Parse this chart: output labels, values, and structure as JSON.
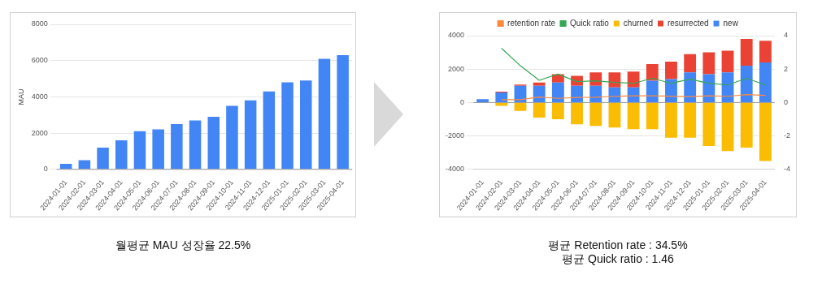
{
  "chart_data": [
    {
      "type": "bar",
      "ylabel": "MAU",
      "categories": [
        "2024-01-01",
        "2024-02-01",
        "2024-03-01",
        "2024-04-01",
        "2024-05-01",
        "2024-06-01",
        "2024-07-01",
        "2024-08-01",
        "2024-09-01",
        "2024-10-01",
        "2024-11-01",
        "2024-12-01",
        "2025-01-01",
        "2025-02-01",
        "2025-03-01",
        "2025-04-01"
      ],
      "series": [
        {
          "color": "#4285f4",
          "values": [
            300,
            500,
            1200,
            1600,
            2100,
            2200,
            2500,
            2700,
            2900,
            3500,
            3800,
            4300,
            4800,
            4900,
            6100,
            6300
          ]
        }
      ],
      "ylim": [
        0,
        8000
      ],
      "yticks": [
        0,
        2000,
        4000,
        6000,
        8000
      ],
      "grid": "y",
      "annotations": [
        "월평균 MAU 성장율 22.5%"
      ]
    },
    {
      "type": "bar",
      "stacked": true,
      "categories": [
        "2024-01-01",
        "2024-02-01",
        "2024-03-01",
        "2024-04-01",
        "2024-05-01",
        "2024-06-01",
        "2024-07-01",
        "2024-08-01",
        "2024-09-01",
        "2024-10-01",
        "2024-11-01",
        "2024-12-01",
        "2025-01-01",
        "2025-02-01",
        "2025-03-01",
        "2025-04-01"
      ],
      "series": [
        {
          "name": "new",
          "color": "#4285f4",
          "values": [
            200,
            600,
            1000,
            1000,
            1200,
            1000,
            1000,
            900,
            900,
            1300,
            1400,
            1800,
            1700,
            1800,
            2200,
            2400
          ]
        },
        {
          "name": "resurrected",
          "color": "#ea4335",
          "values": [
            null,
            50,
            80,
            200,
            500,
            600,
            800,
            900,
            950,
            1000,
            1050,
            1100,
            1300,
            1300,
            1600,
            1300
          ]
        },
        {
          "name": "churned",
          "color": "#fbbc04",
          "values": [
            null,
            -200,
            -500,
            -900,
            -1000,
            -1300,
            -1400,
            -1500,
            -1600,
            -1600,
            -2100,
            -2100,
            -2600,
            -2900,
            -2700,
            -3500
          ]
        },
        {
          "name": "Quick ratio",
          "type": "line",
          "axis": "y2",
          "color": "#34a853",
          "values": [
            null,
            3.25,
            2.2,
            1.33,
            1.7,
            1.25,
            1.3,
            1.2,
            1.15,
            1.45,
            1.15,
            1.4,
            1.15,
            1.05,
            1.45,
            1.05
          ]
        },
        {
          "name": "retention rate",
          "type": "line",
          "axis": "y2",
          "color": "#ff8a3d",
          "values": [
            null,
            0.17,
            0.17,
            0.33,
            0.25,
            0.3,
            0.32,
            0.37,
            0.4,
            0.4,
            0.38,
            0.35,
            0.4,
            0.37,
            0.47,
            0.43
          ]
        }
      ],
      "ylim": [
        -4000,
        4000
      ],
      "yticks": [
        -4000,
        -2000,
        0,
        2000,
        4000
      ],
      "y2lim": [
        -4,
        4
      ],
      "y2ticks": [
        -4,
        -2,
        0,
        2,
        4
      ],
      "grid": "y",
      "legend": "top",
      "marker": "none",
      "annotations": [
        "평균 Retention rate : 34.5%",
        "평균 Quick ratio : 1.46"
      ]
    }
  ]
}
